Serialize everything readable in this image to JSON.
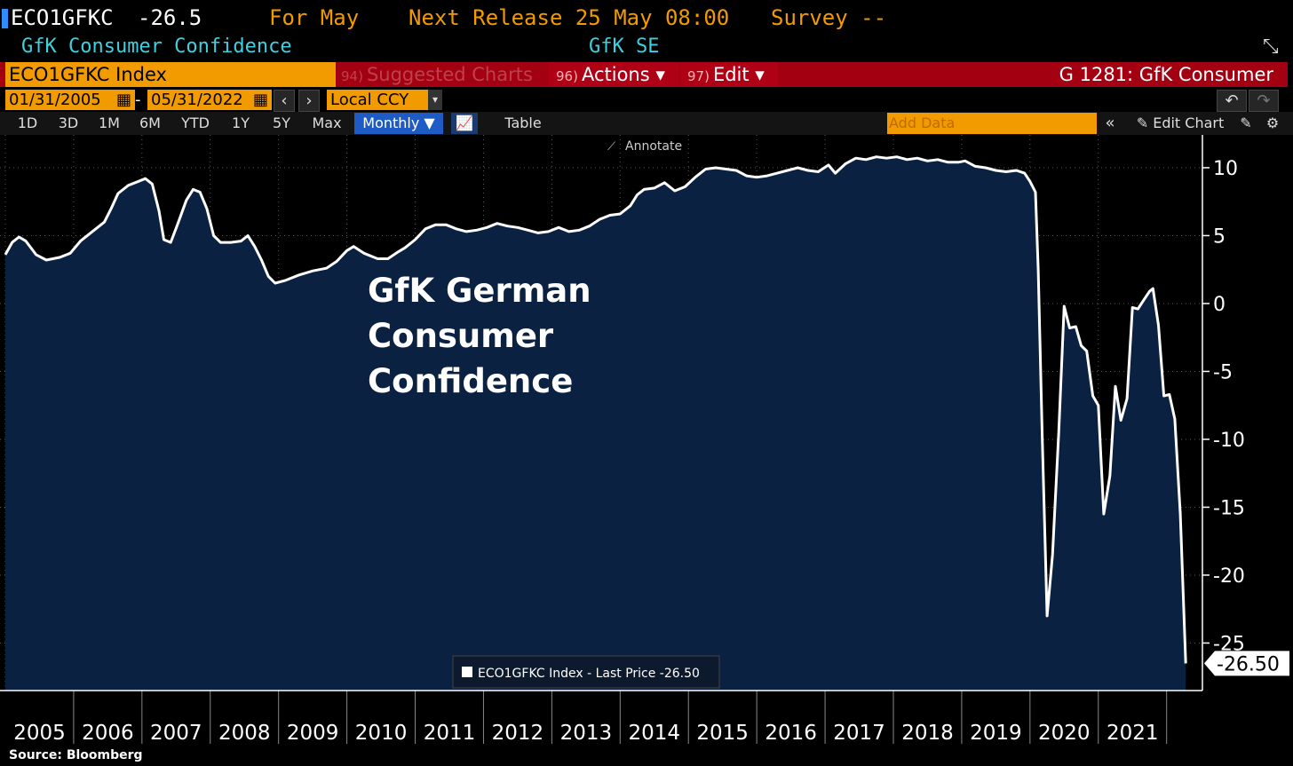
{
  "header": {
    "ticker": "ECO1GFKC",
    "last_value": "-26.5",
    "period": "For May",
    "next_release": "Next Release 25 May 08:00",
    "survey": "Survey --",
    "name": "GfK Consumer Confidence",
    "source_org": "GfK SE"
  },
  "toolbar": {
    "security": "ECO1GFKC Index",
    "suggested_num": "94)",
    "suggested_label": "Suggested Charts",
    "actions_num": "96)",
    "actions_label": "Actions ▾",
    "edit_num": "97)",
    "edit_label": "Edit ▾",
    "chart_title": "G 1281: GfK Consumer"
  },
  "date_range": {
    "start": "01/31/2005",
    "separator": "-",
    "end": "05/31/2022",
    "currency": "Local CCY"
  },
  "periods": [
    "1D",
    "3D",
    "1M",
    "6M",
    "YTD",
    "1Y",
    "5Y",
    "Max"
  ],
  "frequency": "Monthly ▼",
  "table_label": "Table",
  "add_data_placeholder": "Add Data",
  "edit_chart_label": "Edit Chart",
  "annotate_label": "Annotate",
  "legend_label": "ECO1GFKC Index - Last Price -26.50",
  "last_price_tag": "-26.50",
  "source": "Source: Bloomberg",
  "colors": {
    "fill": "#0b2142",
    "line": "#ffffff",
    "amber": "#f29b00",
    "red_bar": "#a30012",
    "cyan": "#3fd0e0"
  },
  "chart_data": {
    "type": "area",
    "title": "GfK German Consumer Confidence",
    "x_labels": [
      "2005",
      "2006",
      "2007",
      "2008",
      "2009",
      "2010",
      "2011",
      "2012",
      "2013",
      "2014",
      "2015",
      "2016",
      "2017",
      "2018",
      "2019",
      "2020",
      "2021"
    ],
    "yticks": [
      10,
      5,
      0,
      -5,
      -10,
      -15,
      -20,
      -25
    ],
    "ylim": [
      -28.5,
      11.5
    ],
    "series": [
      {
        "values": [
          {
            "t": 2005.0,
            "v": 3.6
          },
          {
            "t": 2005.1,
            "v": 4.5
          },
          {
            "t": 2005.2,
            "v": 4.9
          },
          {
            "t": 2005.3,
            "v": 4.6
          },
          {
            "t": 2005.45,
            "v": 3.6
          },
          {
            "t": 2005.6,
            "v": 3.2
          },
          {
            "t": 2005.8,
            "v": 3.4
          },
          {
            "t": 2005.95,
            "v": 3.7
          },
          {
            "t": 2006.1,
            "v": 4.6
          },
          {
            "t": 2006.3,
            "v": 5.4
          },
          {
            "t": 2006.45,
            "v": 6.0
          },
          {
            "t": 2006.55,
            "v": 7.0
          },
          {
            "t": 2006.65,
            "v": 8.1
          },
          {
            "t": 2006.8,
            "v": 8.7
          },
          {
            "t": 2006.95,
            "v": 9.0
          },
          {
            "t": 2007.05,
            "v": 9.2
          },
          {
            "t": 2007.15,
            "v": 8.8
          },
          {
            "t": 2007.25,
            "v": 6.8
          },
          {
            "t": 2007.32,
            "v": 4.7
          },
          {
            "t": 2007.42,
            "v": 4.5
          },
          {
            "t": 2007.52,
            "v": 5.8
          },
          {
            "t": 2007.65,
            "v": 7.6
          },
          {
            "t": 2007.75,
            "v": 8.4
          },
          {
            "t": 2007.85,
            "v": 8.2
          },
          {
            "t": 2007.95,
            "v": 7.0
          },
          {
            "t": 2008.05,
            "v": 5.0
          },
          {
            "t": 2008.15,
            "v": 4.5
          },
          {
            "t": 2008.3,
            "v": 4.5
          },
          {
            "t": 2008.45,
            "v": 4.6
          },
          {
            "t": 2008.55,
            "v": 5.0
          },
          {
            "t": 2008.65,
            "v": 4.2
          },
          {
            "t": 2008.75,
            "v": 3.2
          },
          {
            "t": 2008.85,
            "v": 2.0
          },
          {
            "t": 2008.95,
            "v": 1.5
          },
          {
            "t": 2009.1,
            "v": 1.7
          },
          {
            "t": 2009.3,
            "v": 2.1
          },
          {
            "t": 2009.5,
            "v": 2.4
          },
          {
            "t": 2009.7,
            "v": 2.6
          },
          {
            "t": 2009.85,
            "v": 3.1
          },
          {
            "t": 2010.0,
            "v": 3.9
          },
          {
            "t": 2010.1,
            "v": 4.2
          },
          {
            "t": 2010.25,
            "v": 3.7
          },
          {
            "t": 2010.45,
            "v": 3.3
          },
          {
            "t": 2010.6,
            "v": 3.3
          },
          {
            "t": 2010.75,
            "v": 3.8
          },
          {
            "t": 2010.85,
            "v": 4.1
          },
          {
            "t": 2011.0,
            "v": 4.7
          },
          {
            "t": 2011.15,
            "v": 5.5
          },
          {
            "t": 2011.3,
            "v": 5.8
          },
          {
            "t": 2011.45,
            "v": 5.8
          },
          {
            "t": 2011.6,
            "v": 5.5
          },
          {
            "t": 2011.75,
            "v": 5.3
          },
          {
            "t": 2011.9,
            "v": 5.4
          },
          {
            "t": 2012.05,
            "v": 5.6
          },
          {
            "t": 2012.2,
            "v": 5.9
          },
          {
            "t": 2012.35,
            "v": 5.7
          },
          {
            "t": 2012.5,
            "v": 5.6
          },
          {
            "t": 2012.65,
            "v": 5.4
          },
          {
            "t": 2012.8,
            "v": 5.2
          },
          {
            "t": 2012.95,
            "v": 5.3
          },
          {
            "t": 2013.1,
            "v": 5.6
          },
          {
            "t": 2013.25,
            "v": 5.3
          },
          {
            "t": 2013.4,
            "v": 5.4
          },
          {
            "t": 2013.55,
            "v": 5.7
          },
          {
            "t": 2013.7,
            "v": 6.2
          },
          {
            "t": 2013.85,
            "v": 6.5
          },
          {
            "t": 2014.0,
            "v": 6.6
          },
          {
            "t": 2014.15,
            "v": 7.2
          },
          {
            "t": 2014.25,
            "v": 8.0
          },
          {
            "t": 2014.35,
            "v": 8.4
          },
          {
            "t": 2014.5,
            "v": 8.5
          },
          {
            "t": 2014.65,
            "v": 8.9
          },
          {
            "t": 2014.8,
            "v": 8.3
          },
          {
            "t": 2014.95,
            "v": 8.6
          },
          {
            "t": 2015.1,
            "v": 9.3
          },
          {
            "t": 2015.25,
            "v": 9.9
          },
          {
            "t": 2015.4,
            "v": 10.0
          },
          {
            "t": 2015.55,
            "v": 9.9
          },
          {
            "t": 2015.7,
            "v": 9.8
          },
          {
            "t": 2015.85,
            "v": 9.4
          },
          {
            "t": 2016.0,
            "v": 9.3
          },
          {
            "t": 2016.15,
            "v": 9.4
          },
          {
            "t": 2016.3,
            "v": 9.6
          },
          {
            "t": 2016.45,
            "v": 9.8
          },
          {
            "t": 2016.6,
            "v": 10.0
          },
          {
            "t": 2016.75,
            "v": 9.8
          },
          {
            "t": 2016.9,
            "v": 9.7
          },
          {
            "t": 2017.05,
            "v": 10.2
          },
          {
            "t": 2017.15,
            "v": 9.6
          },
          {
            "t": 2017.3,
            "v": 10.3
          },
          {
            "t": 2017.45,
            "v": 10.7
          },
          {
            "t": 2017.6,
            "v": 10.6
          },
          {
            "t": 2017.75,
            "v": 10.8
          },
          {
            "t": 2017.9,
            "v": 10.7
          },
          {
            "t": 2018.05,
            "v": 10.8
          },
          {
            "t": 2018.2,
            "v": 10.6
          },
          {
            "t": 2018.35,
            "v": 10.7
          },
          {
            "t": 2018.5,
            "v": 10.5
          },
          {
            "t": 2018.65,
            "v": 10.6
          },
          {
            "t": 2018.8,
            "v": 10.4
          },
          {
            "t": 2018.95,
            "v": 10.4
          },
          {
            "t": 2019.05,
            "v": 10.5
          },
          {
            "t": 2019.2,
            "v": 10.1
          },
          {
            "t": 2019.35,
            "v": 10.0
          },
          {
            "t": 2019.5,
            "v": 9.8
          },
          {
            "t": 2019.65,
            "v": 9.7
          },
          {
            "t": 2019.8,
            "v": 9.8
          },
          {
            "t": 2019.92,
            "v": 9.6
          },
          {
            "t": 2020.0,
            "v": 9.0
          },
          {
            "t": 2020.08,
            "v": 8.2
          },
          {
            "t": 2020.12,
            "v": 2.5
          },
          {
            "t": 2020.18,
            "v": -10.0
          },
          {
            "t": 2020.25,
            "v": -23.0
          },
          {
            "t": 2020.33,
            "v": -18.5
          },
          {
            "t": 2020.42,
            "v": -9.5
          },
          {
            "t": 2020.5,
            "v": -0.2
          },
          {
            "t": 2020.58,
            "v": -1.8
          },
          {
            "t": 2020.67,
            "v": -1.7
          },
          {
            "t": 2020.75,
            "v": -3.1
          },
          {
            "t": 2020.83,
            "v": -3.5
          },
          {
            "t": 2020.92,
            "v": -6.8
          },
          {
            "t": 2021.0,
            "v": -7.5
          },
          {
            "t": 2021.08,
            "v": -15.5
          },
          {
            "t": 2021.17,
            "v": -12.7
          },
          {
            "t": 2021.25,
            "v": -6.1
          },
          {
            "t": 2021.33,
            "v": -8.6
          },
          {
            "t": 2021.42,
            "v": -7.0
          },
          {
            "t": 2021.5,
            "v": -0.3
          },
          {
            "t": 2021.58,
            "v": -0.4
          },
          {
            "t": 2021.67,
            "v": 0.3
          },
          {
            "t": 2021.75,
            "v": 0.9
          },
          {
            "t": 2021.8,
            "v": 1.1
          },
          {
            "t": 2021.88,
            "v": -1.6
          },
          {
            "t": 2021.96,
            "v": -6.8
          },
          {
            "t": 2022.04,
            "v": -6.7
          },
          {
            "t": 2022.12,
            "v": -8.5
          },
          {
            "t": 2022.2,
            "v": -15.5
          },
          {
            "t": 2022.28,
            "v": -26.5
          }
        ]
      }
    ]
  }
}
